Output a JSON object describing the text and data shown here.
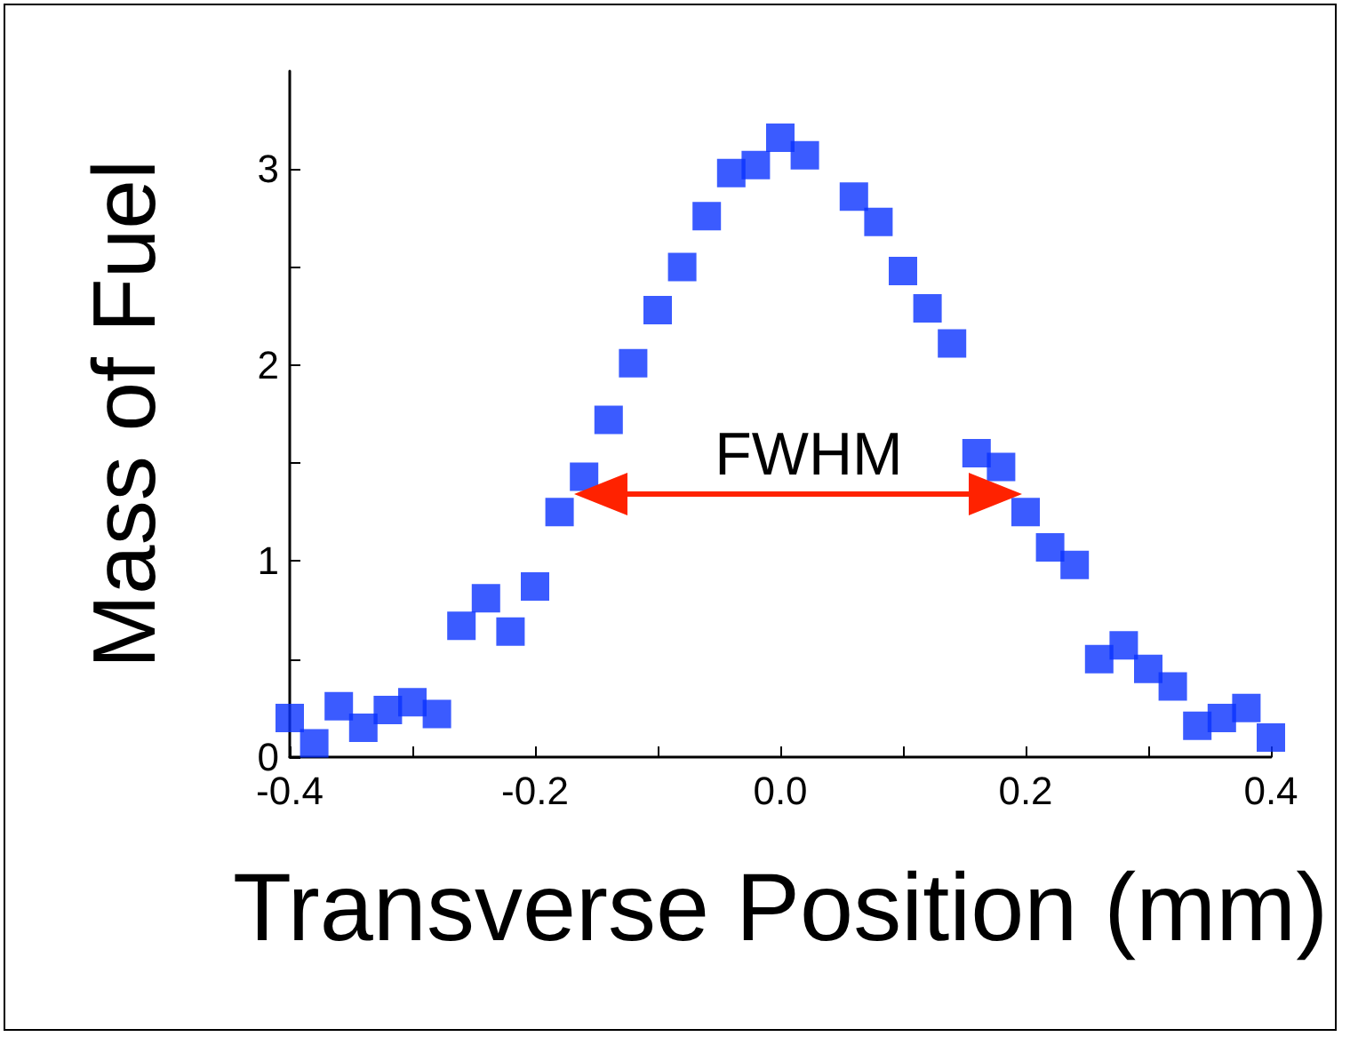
{
  "chart_data": {
    "type": "scatter",
    "xlabel": "Transverse Position (mm)",
    "ylabel": "Mass of Fuel",
    "x": [
      -0.4,
      -0.38,
      -0.36,
      -0.34,
      -0.32,
      -0.3,
      -0.28,
      -0.26,
      -0.24,
      -0.22,
      -0.2,
      -0.18,
      -0.16,
      -0.14,
      -0.12,
      -0.1,
      -0.08,
      -0.06,
      -0.04,
      -0.02,
      0,
      0.02,
      0.06,
      0.08,
      0.1,
      0.12,
      0.14,
      0.16,
      0.18,
      0.2,
      0.22,
      0.24,
      0.26,
      0.28,
      0.3,
      0.32,
      0.34,
      0.36,
      0.38,
      0.4
    ],
    "series": [
      {
        "color": "#0a32ff",
        "values": [
          0.2,
          0.07,
          0.26,
          0.15,
          0.24,
          0.28,
          0.22,
          0.67,
          0.81,
          0.64,
          0.87,
          1.25,
          1.43,
          1.72,
          2.01,
          2.28,
          2.5,
          2.76,
          2.98,
          3.02,
          3.16,
          3.07,
          2.86,
          2.73,
          2.48,
          2.29,
          2.11,
          1.55,
          1.48,
          1.25,
          1.07,
          0.98,
          0.5,
          0.57,
          0.45,
          0.36,
          0.16,
          0.2,
          0.25,
          0.1
        ]
      }
    ],
    "xlim": [
      -0.4,
      0.4
    ],
    "xticks": [
      -0.4,
      {
        "value": -0.3,
        "label": null
      },
      -0.2,
      {
        "value": -0.1,
        "label": null
      },
      {
        "value": 0,
        "label": "0.0"
      },
      {
        "value": 0.1,
        "label": null
      },
      0.2,
      {
        "value": 0.3,
        "label": null
      },
      0.4
    ],
    "ylim": [
      0,
      3.5
    ],
    "yticks": [
      0,
      {
        "value": 0.5,
        "label": null
      },
      1,
      {
        "value": 1.5,
        "label": null
      },
      2,
      {
        "value": 2.5,
        "label": null
      },
      3
    ],
    "marker": "square",
    "grid": false,
    "annotations": [
      "FWHM"
    ]
  }
}
